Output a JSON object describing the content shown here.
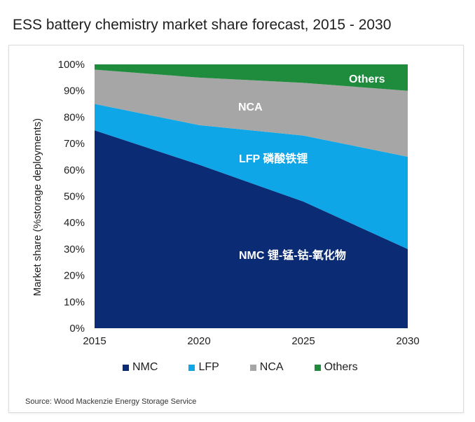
{
  "page": {
    "title": "ESS battery chemistry market share forecast, 2015 - 2030",
    "source": "Source: Wood Mackenzie Energy Storage Service"
  },
  "chart_data": {
    "type": "area",
    "stacked": true,
    "x": [
      2015,
      2020,
      2025,
      2030
    ],
    "xlim": [
      2015,
      2030
    ],
    "ylim": [
      0,
      100
    ],
    "y_ticks": [
      "0%",
      "10%",
      "20%",
      "30%",
      "40%",
      "50%",
      "60%",
      "70%",
      "80%",
      "90%",
      "100%"
    ],
    "x_ticks": [
      "2015",
      "2020",
      "2025",
      "2030"
    ],
    "ylabel": "Market share (%storage deployments)",
    "xlabel": "",
    "series": [
      {
        "name": "NMC",
        "color": "#0b2c74",
        "values": [
          75,
          62,
          48,
          30
        ],
        "label": "NMC  锂-锰-钴-氧化物",
        "label_color": "#ffffff"
      },
      {
        "name": "LFP",
        "color": "#0ea6e6",
        "values": [
          10,
          15,
          25,
          35
        ],
        "label": "LFP  磷酸铁锂",
        "label_color": "#ffffff"
      },
      {
        "name": "NCA",
        "color": "#a6a6a6",
        "values": [
          13,
          18,
          20,
          25
        ],
        "label": "NCA",
        "label_color": "#ffffff"
      },
      {
        "name": "Others",
        "color": "#1e8c3c",
        "values": [
          2,
          5,
          7,
          10
        ],
        "label": "Others",
        "label_color": "#ffffff"
      }
    ]
  },
  "legend": {
    "items": [
      {
        "label": "NMC",
        "color": "#0b2c74"
      },
      {
        "label": "LFP",
        "color": "#0ea6e6"
      },
      {
        "label": "NCA",
        "color": "#a6a6a6"
      },
      {
        "label": "Others",
        "color": "#1e8c3c"
      }
    ]
  }
}
